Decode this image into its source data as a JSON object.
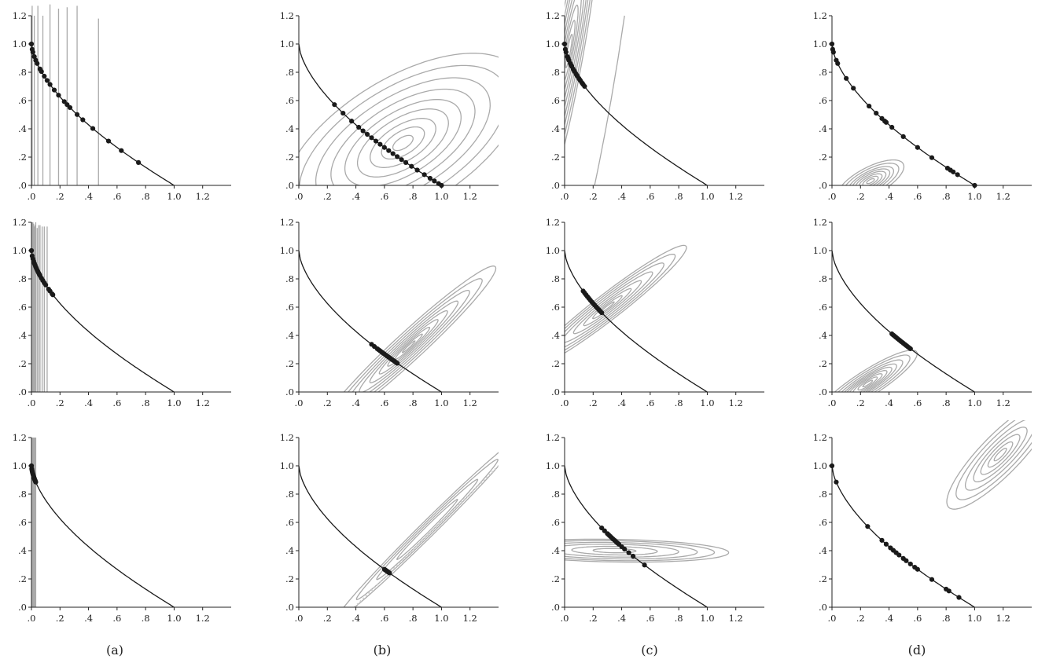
{
  "figure": {
    "captions": [
      "(a)",
      "(b)",
      "(c)",
      "(d)"
    ],
    "x_tick_labels": [
      ".0",
      ".2",
      ".4",
      ".6",
      ".8",
      "1.0",
      "1.2"
    ],
    "y_tick_labels": [
      ".0",
      ".2",
      ".4",
      ".6",
      ".8",
      "1.0",
      "1.2"
    ],
    "colors": {
      "curve": "#1a1a1a",
      "contour": "#aaaaaa",
      "points": "#1a1a1a"
    }
  },
  "chart_data": [
    {
      "id": "r1c1",
      "type": "scatter",
      "xlim": [
        0,
        1.4
      ],
      "ylim": [
        0,
        1.2
      ],
      "front": "convex_decreasing",
      "contours": {
        "kind": "vertical",
        "x": [
          0.005,
          0.02,
          0.045,
          0.08,
          0.13,
          0.19,
          0.25,
          0.32,
          0.47
        ],
        "y_top": [
          1.27,
          1.2,
          1.27,
          1.2,
          1.28,
          1.25,
          1.26,
          1.27,
          1.18
        ]
      },
      "points_x": [
        0.0,
        0.005,
        0.01,
        0.02,
        0.03,
        0.04,
        0.06,
        0.07,
        0.09,
        0.11,
        0.13,
        0.16,
        0.19,
        0.23,
        0.25,
        0.27,
        0.32,
        0.36,
        0.43,
        0.54,
        0.63,
        0.75
      ]
    },
    {
      "id": "r1c2",
      "type": "scatter",
      "xlim": [
        0,
        1.4
      ],
      "ylim": [
        0,
        1.2
      ],
      "front": "convex_decreasing",
      "contours": {
        "kind": "ellipses",
        "cx": 0.73,
        "cy": 0.3,
        "angle_deg": 32,
        "semi_major": [
          0.08,
          0.17,
          0.26,
          0.36,
          0.46,
          0.57,
          0.69,
          0.82,
          0.95
        ],
        "ratio": 0.48
      },
      "points_x": [
        0.25,
        0.31,
        0.37,
        0.42,
        0.45,
        0.48,
        0.51,
        0.54,
        0.57,
        0.6,
        0.63,
        0.66,
        0.69,
        0.72,
        0.75,
        0.79,
        0.83,
        0.88,
        0.92,
        0.95,
        0.98,
        1.0
      ]
    },
    {
      "id": "r1c3",
      "type": "scatter",
      "xlim": [
        0,
        1.4
      ],
      "ylim": [
        0,
        1.2
      ],
      "front": "convex_decreasing",
      "contours": {
        "kind": "ellipses",
        "cx": 0.03,
        "cy": 0.95,
        "angle_deg": 80,
        "semi_major": [
          0.12,
          0.22,
          0.33,
          0.45,
          0.58,
          0.72,
          0.85,
          1.0,
          1.15
        ],
        "ratio": 0.09,
        "extra_line": [
          [
            0.21,
            0.0
          ],
          [
            0.42,
            1.2
          ]
        ]
      },
      "points_x": [
        0.0,
        0.005,
        0.01,
        0.02,
        0.025,
        0.03,
        0.04,
        0.045,
        0.05,
        0.06,
        0.065,
        0.07,
        0.08,
        0.085,
        0.09,
        0.1,
        0.105,
        0.11,
        0.12,
        0.125,
        0.13,
        0.14
      ]
    },
    {
      "id": "r1c4",
      "type": "scatter",
      "xlim": [
        0,
        1.4
      ],
      "ylim": [
        0,
        1.2
      ],
      "front": "convex_decreasing",
      "contours": {
        "kind": "ellipses",
        "cx": 0.27,
        "cy": 0.03,
        "angle_deg": 28,
        "semi_major": [
          0.03,
          0.06,
          0.09,
          0.12,
          0.15,
          0.18,
          0.22,
          0.26
        ],
        "ratio": 0.38
      },
      "points_x": [
        0.0,
        0.005,
        0.01,
        0.03,
        0.04,
        0.1,
        0.15,
        0.26,
        0.31,
        0.35,
        0.37,
        0.38,
        0.42,
        0.5,
        0.6,
        0.7,
        0.81,
        0.83,
        0.85,
        0.88,
        1.0
      ]
    },
    {
      "id": "r2c1",
      "type": "scatter",
      "xlim": [
        0,
        1.4
      ],
      "ylim": [
        0,
        1.2
      ],
      "front": "convex_decreasing",
      "contours": {
        "kind": "vertical",
        "x": [
          0.005,
          0.01,
          0.015,
          0.02,
          0.025,
          0.03,
          0.04,
          0.05,
          0.06,
          0.075,
          0.09,
          0.11
        ],
        "y_top": [
          1.2,
          1.2,
          1.19,
          1.17,
          1.18,
          1.2,
          1.16,
          1.18,
          1.18,
          1.17,
          1.17,
          1.17
        ]
      },
      "points_x": [
        0.0,
        0.005,
        0.01,
        0.015,
        0.02,
        0.025,
        0.03,
        0.035,
        0.04,
        0.045,
        0.05,
        0.055,
        0.06,
        0.07,
        0.08,
        0.09,
        0.1,
        0.12,
        0.13,
        0.145,
        0.15
      ]
    },
    {
      "id": "r2c2",
      "type": "scatter",
      "xlim": [
        0,
        1.4
      ],
      "ylim": [
        0,
        1.2
      ],
      "front": "convex_decreasing",
      "contours": {
        "kind": "ellipses",
        "cx": 0.77,
        "cy": 0.32,
        "angle_deg": 43,
        "semi_major": [
          0.06,
          0.13,
          0.2,
          0.28,
          0.37,
          0.47,
          0.58,
          0.7,
          0.83
        ],
        "ratio": 0.12
      },
      "points_x": [
        0.51,
        0.53,
        0.55,
        0.56,
        0.57,
        0.58,
        0.59,
        0.6,
        0.61,
        0.62,
        0.63,
        0.64,
        0.65,
        0.66,
        0.67,
        0.68,
        0.69
      ]
    },
    {
      "id": "r2c3",
      "type": "scatter",
      "xlim": [
        0,
        1.4
      ],
      "ylim": [
        0,
        1.2
      ],
      "front": "convex_decreasing",
      "contours": {
        "kind": "ellipses",
        "cx": 0.3,
        "cy": 0.6,
        "angle_deg": 38,
        "semi_major": [
          0.06,
          0.13,
          0.21,
          0.3,
          0.4,
          0.5,
          0.6,
          0.7
        ],
        "ratio": 0.13
      },
      "points_x": [
        0.13,
        0.14,
        0.15,
        0.16,
        0.17,
        0.18,
        0.19,
        0.2,
        0.21,
        0.22,
        0.23,
        0.24,
        0.25,
        0.26
      ]
    },
    {
      "id": "r2c4",
      "type": "scatter",
      "xlim": [
        0,
        1.4
      ],
      "ylim": [
        0,
        1.2
      ],
      "front": "convex_decreasing",
      "contours": {
        "kind": "ellipses",
        "cx": 0.25,
        "cy": 0.06,
        "angle_deg": 33,
        "semi_major": [
          0.04,
          0.08,
          0.12,
          0.16,
          0.2,
          0.24,
          0.29,
          0.35,
          0.41
        ],
        "ratio": 0.22
      },
      "points_x": [
        0.42,
        0.43,
        0.44,
        0.45,
        0.46,
        0.47,
        0.48,
        0.49,
        0.5,
        0.51,
        0.52,
        0.53,
        0.54,
        0.55
      ]
    },
    {
      "id": "r3c1",
      "type": "scatter",
      "xlim": [
        0,
        1.4
      ],
      "ylim": [
        0,
        1.2
      ],
      "front": "convex_decreasing",
      "contours": {
        "kind": "vertical",
        "x": [
          0.003,
          0.006,
          0.009,
          0.012,
          0.015,
          0.018,
          0.021,
          0.024,
          0.027,
          0.03
        ],
        "y_top": [
          1.2,
          1.2,
          1.2,
          1.2,
          1.2,
          1.2,
          1.2,
          1.2,
          1.2,
          1.2
        ]
      },
      "points_x": [
        0.0,
        0.002,
        0.004,
        0.006,
        0.008,
        0.01,
        0.012,
        0.014,
        0.016,
        0.018,
        0.02,
        0.022,
        0.024,
        0.026,
        0.028,
        0.03
      ]
    },
    {
      "id": "r3c2",
      "type": "scatter",
      "xlim": [
        0,
        1.4
      ],
      "ylim": [
        0,
        1.2
      ],
      "front": "convex_decreasing",
      "contours": {
        "kind": "ellipses",
        "cx": 0.9,
        "cy": 0.55,
        "angle_deg": 45,
        "semi_major": [
          0.3,
          0.5,
          0.7,
          0.9
        ],
        "ratio": 0.06,
        "dotted_center_line": [
          [
            0.39,
            0.0
          ],
          [
            1.4,
            1.0
          ]
        ]
      },
      "points_x": [
        0.6,
        0.605,
        0.61,
        0.615,
        0.62,
        0.625,
        0.63,
        0.635
      ]
    },
    {
      "id": "r3c3",
      "type": "scatter",
      "xlim": [
        0,
        1.4
      ],
      "ylim": [
        0,
        1.2
      ],
      "front": "convex_decreasing",
      "contours": {
        "kind": "ellipses",
        "cx": 0.35,
        "cy": 0.4,
        "angle_deg": -1,
        "semi_major": [
          0.15,
          0.3,
          0.45,
          0.58,
          0.7,
          0.8
        ],
        "ratio": 0.1
      },
      "points_x": [
        0.26,
        0.28,
        0.3,
        0.31,
        0.32,
        0.33,
        0.34,
        0.35,
        0.36,
        0.37,
        0.38,
        0.4,
        0.42,
        0.45,
        0.48,
        0.56
      ]
    },
    {
      "id": "r3c4",
      "type": "scatter",
      "xlim": [
        0,
        1.4
      ],
      "ylim": [
        0,
        1.2
      ],
      "front": "convex_decreasing",
      "contours": {
        "kind": "ellipses",
        "cx": 1.18,
        "cy": 1.08,
        "angle_deg": 46,
        "semi_major": [
          0.06,
          0.12,
          0.19,
          0.26,
          0.34,
          0.43,
          0.52
        ],
        "ratio": 0.27
      },
      "points_x": [
        0.0,
        0.03,
        0.25,
        0.35,
        0.38,
        0.41,
        0.43,
        0.45,
        0.47,
        0.5,
        0.52,
        0.55,
        0.58,
        0.6,
        0.7,
        0.8,
        0.82,
        0.89
      ]
    }
  ]
}
